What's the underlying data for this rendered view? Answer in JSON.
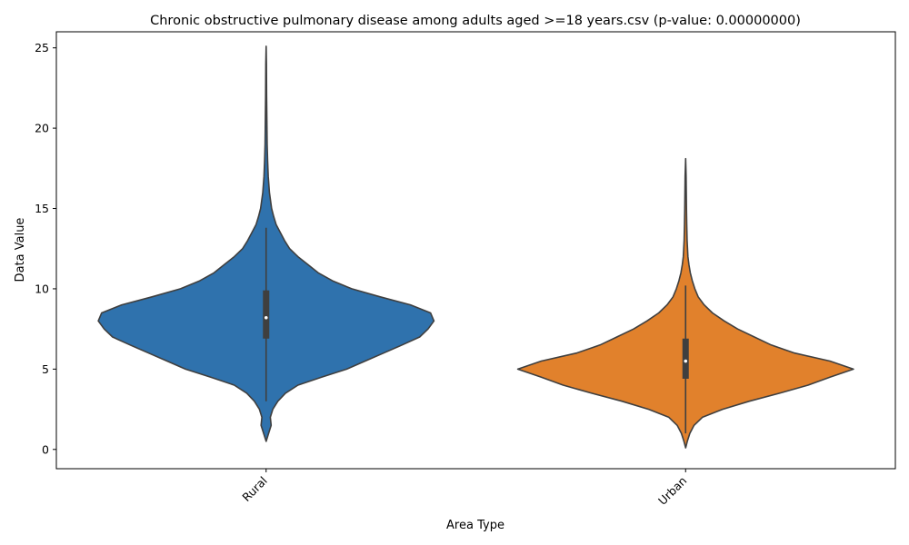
{
  "chart_data": {
    "type": "violin",
    "title": "Chronic obstructive pulmonary disease among adults aged >=18 years.csv (p-value: 0.00000000)",
    "xlabel": "Area Type",
    "ylabel": "Data Value",
    "ylim": [
      -1.2,
      26.0
    ],
    "yticks": [
      0,
      5,
      10,
      15,
      20,
      25
    ],
    "grid": false,
    "categories": [
      "Rural",
      "Urban"
    ],
    "series": [
      {
        "category": "Rural",
        "color": "#2f72ad",
        "min": 0.5,
        "max": 25.1,
        "q1": 6.9,
        "median": 8.2,
        "q3": 9.9,
        "whisker_low": 3.0,
        "whisker_high": 13.8,
        "density_profile": [
          [
            0.5,
            0.0
          ],
          [
            1.0,
            0.015
          ],
          [
            1.5,
            0.03
          ],
          [
            2.0,
            0.025
          ],
          [
            2.5,
            0.04
          ],
          [
            3.0,
            0.07
          ],
          [
            3.5,
            0.115
          ],
          [
            4.0,
            0.19
          ],
          [
            4.5,
            0.33
          ],
          [
            5.0,
            0.48
          ],
          [
            5.5,
            0.59
          ],
          [
            6.0,
            0.7
          ],
          [
            6.5,
            0.81
          ],
          [
            7.0,
            0.915
          ],
          [
            7.5,
            0.965
          ],
          [
            8.0,
            1.0
          ],
          [
            8.5,
            0.98
          ],
          [
            9.0,
            0.86
          ],
          [
            9.5,
            0.68
          ],
          [
            10.0,
            0.51
          ],
          [
            10.5,
            0.395
          ],
          [
            11.0,
            0.31
          ],
          [
            11.5,
            0.25
          ],
          [
            12.0,
            0.19
          ],
          [
            12.5,
            0.14
          ],
          [
            13.0,
            0.11
          ],
          [
            13.5,
            0.085
          ],
          [
            14.0,
            0.06
          ],
          [
            14.5,
            0.045
          ],
          [
            15.0,
            0.033
          ],
          [
            16.0,
            0.02
          ],
          [
            17.0,
            0.013
          ],
          [
            18.0,
            0.009
          ],
          [
            19.0,
            0.006
          ],
          [
            20.0,
            0.005
          ],
          [
            22.0,
            0.003
          ],
          [
            24.0,
            0.002
          ],
          [
            25.1,
            0.0
          ]
        ]
      },
      {
        "category": "Urban",
        "color": "#e1812c",
        "min": 0.1,
        "max": 18.1,
        "q1": 4.4,
        "median": 5.5,
        "q3": 6.9,
        "whisker_low": 1.0,
        "whisker_high": 10.2,
        "density_profile": [
          [
            0.1,
            0.0
          ],
          [
            0.5,
            0.01
          ],
          [
            1.0,
            0.025
          ],
          [
            1.5,
            0.05
          ],
          [
            2.0,
            0.1
          ],
          [
            2.5,
            0.22
          ],
          [
            3.0,
            0.38
          ],
          [
            3.5,
            0.56
          ],
          [
            4.0,
            0.73
          ],
          [
            4.5,
            0.86
          ],
          [
            5.0,
            1.0
          ],
          [
            5.5,
            0.86
          ],
          [
            6.0,
            0.65
          ],
          [
            6.5,
            0.51
          ],
          [
            7.0,
            0.41
          ],
          [
            7.5,
            0.31
          ],
          [
            8.0,
            0.23
          ],
          [
            8.5,
            0.16
          ],
          [
            9.0,
            0.11
          ],
          [
            9.5,
            0.075
          ],
          [
            10.0,
            0.055
          ],
          [
            10.5,
            0.04
          ],
          [
            11.0,
            0.028
          ],
          [
            11.5,
            0.02
          ],
          [
            12.0,
            0.014
          ],
          [
            13.0,
            0.009
          ],
          [
            14.0,
            0.007
          ],
          [
            15.0,
            0.005
          ],
          [
            16.0,
            0.004
          ],
          [
            17.0,
            0.003
          ],
          [
            18.1,
            0.0
          ]
        ]
      }
    ]
  }
}
